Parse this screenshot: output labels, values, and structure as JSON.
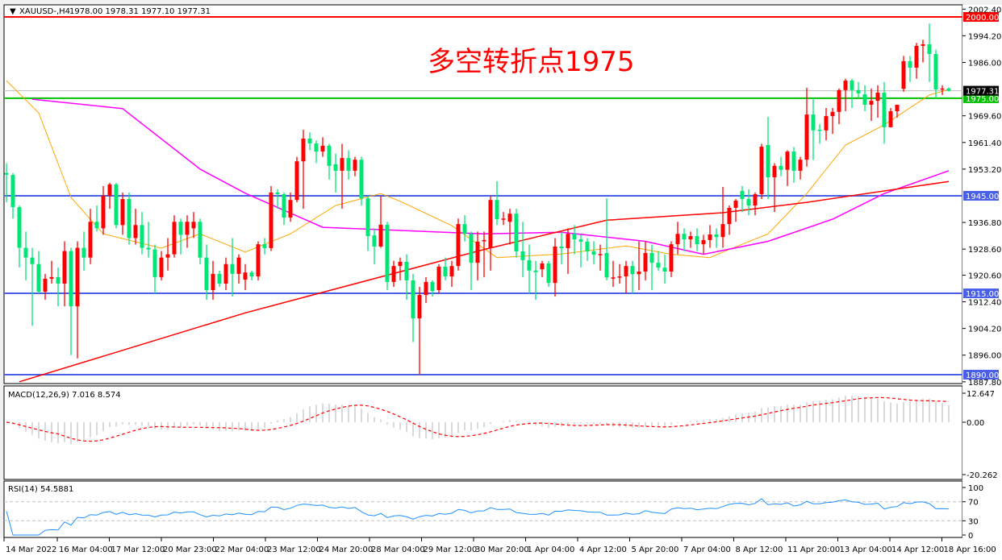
{
  "header": {
    "symbol": "XAUUSD-,H4",
    "ohlc_text": "1978.00 1978.31 1977.10 1977.31"
  },
  "annotation": "多空转折点1975",
  "colors": {
    "bull": "#ff0000",
    "bear": "#00e676",
    "ma_fast": "#ffa500",
    "ma_mid": "#ff00ff",
    "ma_slow": "#ff0000",
    "support": "#4a5fe8",
    "pivot": "#00c000",
    "resistance": "#ff0000",
    "macd_hist": "#c0c0c0",
    "macd_signal": "#ff0000",
    "rsi": "#1e90ff"
  },
  "chart_data": [
    {
      "type": "candlestick",
      "symbol": "XAUUSD-",
      "timeframe": "H4",
      "ylim": [
        1887.8,
        2002.4
      ],
      "y_ticks": [
        "2002.40",
        "1994.20",
        "1986.00",
        "1969.60",
        "1961.40",
        "1953.20",
        "1936.80",
        "1928.60",
        "1920.60",
        "1912.40",
        "1904.20",
        "1896.00",
        "1887.80"
      ],
      "x_ticks": [
        "14 Mar 2022",
        "16 Mar 04:00",
        "17 Mar 12:00",
        "20 Mar 23:00",
        "22 Mar 04:00",
        "23 Mar 12:00",
        "24 Mar 20:00",
        "28 Mar 04:00",
        "29 Mar 12:00",
        "30 Mar 20:00",
        "1 Apr 04:00",
        "4 Apr 12:00",
        "5 Apr 20:00",
        "7 Apr 04:00",
        "8 Apr 12:00",
        "11 Apr 20:00",
        "13 Apr 04:00",
        "14 Apr 12:00",
        "18 Apr 16:00"
      ],
      "candles_ohlc": [
        [
          1952,
          1955,
          1943,
          1951.5
        ],
        [
          1951.4,
          1952,
          1938,
          1941.5
        ],
        [
          1941.5,
          1942,
          1923,
          1929
        ],
        [
          1929,
          1934,
          1919,
          1926
        ],
        [
          1926,
          1929,
          1905,
          1924
        ],
        [
          1924,
          1928,
          1915,
          1915.5
        ],
        [
          1915.5,
          1921,
          1913,
          1919.5
        ],
        [
          1919.5,
          1925,
          1918,
          1920
        ],
        [
          1920,
          1923,
          1911,
          1918
        ],
        [
          1918,
          1931,
          1911,
          1928
        ],
        [
          1928,
          1929,
          1896,
          1911
        ],
        [
          1911,
          1931,
          1895,
          1929
        ],
        [
          1929,
          1934,
          1922,
          1926
        ],
        [
          1926,
          1941,
          1924,
          1937
        ],
        [
          1937,
          1942,
          1934,
          1935
        ],
        [
          1935,
          1948,
          1933,
          1945
        ],
        [
          1945,
          1949,
          1941,
          1948.5
        ],
        [
          1948.5,
          1949,
          1935,
          1936
        ],
        [
          1936,
          1946,
          1933,
          1944
        ],
        [
          1944,
          1946,
          1930,
          1932
        ],
        [
          1932,
          1941,
          1930,
          1936
        ],
        [
          1936,
          1940,
          1927,
          1929
        ],
        [
          1929,
          1937,
          1926,
          1928.5
        ],
        [
          1928.5,
          1930,
          1915,
          1920
        ],
        [
          1920,
          1928,
          1919,
          1926
        ],
        [
          1926,
          1932,
          1922,
          1927
        ],
        [
          1927,
          1939,
          1926,
          1937
        ],
        [
          1937,
          1938,
          1927,
          1933
        ],
        [
          1933,
          1939,
          1929,
          1937
        ],
        [
          1935,
          1940,
          1932,
          1937
        ],
        [
          1937,
          1938,
          1924,
          1926
        ],
        [
          1926,
          1930,
          1913,
          1916
        ],
        [
          1916,
          1925,
          1913,
          1921
        ],
        [
          1921,
          1922,
          1917,
          1918
        ],
        [
          1918,
          1926,
          1916,
          1924
        ],
        [
          1924,
          1932,
          1914,
          1921
        ],
        [
          1921,
          1927,
          1918,
          1926
        ],
        [
          1919.2,
          1924,
          1916,
          1921.4
        ],
        [
          1921.4,
          1922,
          1919,
          1920.2
        ],
        [
          1920.2,
          1931,
          1919,
          1930.1
        ],
        [
          1930.1,
          1932,
          1927,
          1928.9
        ],
        [
          1928.9,
          1948,
          1928,
          1946
        ],
        [
          1946,
          1947,
          1941,
          1945.5
        ],
        [
          1945.5,
          1946,
          1936,
          1938.3
        ],
        [
          1938.3,
          1946,
          1937,
          1943.7
        ],
        [
          1943.7,
          1957,
          1943,
          1955.6
        ],
        [
          1955.6,
          1965.3,
          1941,
          1962.6
        ],
        [
          1962.6,
          1964.5,
          1959,
          1961.1
        ],
        [
          1961.1,
          1962,
          1955,
          1958.6
        ],
        [
          1958.6,
          1963,
          1957,
          1960.4
        ],
        [
          1960.4,
          1961,
          1950,
          1954.2
        ],
        [
          1954.7,
          1958,
          1946,
          1952.7
        ],
        [
          1952.7,
          1961,
          1941,
          1956.6
        ],
        [
          1956.6,
          1959,
          1950,
          1952.7
        ],
        [
          1952.7,
          1957,
          1951,
          1956.1
        ],
        [
          1956.1,
          1957,
          1942,
          1944.2
        ],
        [
          1944.2,
          1945,
          1928,
          1932.6
        ],
        [
          1932.8,
          1935,
          1924,
          1929.4
        ],
        [
          1929.4,
          1945,
          1929,
          1936.1
        ],
        [
          1936.1,
          1937,
          1916,
          1918.5
        ],
        [
          1918.5,
          1925,
          1917,
          1923.4
        ],
        [
          1923.4,
          1926,
          1919,
          1924.7
        ],
        [
          1924.7,
          1927,
          1913,
          1919
        ],
        [
          1919,
          1921,
          1900,
          1907.3
        ],
        [
          1907.3,
          1917,
          1890,
          1914.5
        ],
        [
          1914.5,
          1920,
          1912,
          1918.5
        ],
        [
          1918.5,
          1919,
          1914,
          1915.7
        ],
        [
          1916,
          1924,
          1915,
          1923.2
        ],
        [
          1923.2,
          1926,
          1919,
          1920.2
        ],
        [
          1920.2,
          1925,
          1917,
          1923.4
        ],
        [
          1923.4,
          1938,
          1922,
          1936.3
        ],
        [
          1936.3,
          1939,
          1931,
          1933.3
        ],
        [
          1933.3,
          1934,
          1916,
          1924.4
        ],
        [
          1924.4,
          1934,
          1919,
          1930.9
        ],
        [
          1931,
          1934,
          1920,
          1931.4
        ],
        [
          1929,
          1945,
          1922,
          1943.7
        ],
        [
          1943.7,
          1949.5,
          1936,
          1937.8
        ],
        [
          1937.8,
          1940,
          1936,
          1938
        ],
        [
          1937,
          1941,
          1930,
          1939.5
        ],
        [
          1939.5,
          1941,
          1926,
          1927.9
        ],
        [
          1927.9,
          1937,
          1920,
          1925.2
        ],
        [
          1925.2,
          1930,
          1915,
          1922
        ],
        [
          1922,
          1925,
          1913,
          1921.5
        ],
        [
          1922.4,
          1925,
          1920,
          1924.2
        ],
        [
          1924.2,
          1925,
          1917,
          1918.2
        ],
        [
          1918.2,
          1932,
          1914,
          1929.4
        ],
        [
          1929.4,
          1934,
          1924,
          1928.9
        ],
        [
          1928.9,
          1935,
          1921,
          1933.3
        ],
        [
          1933.3,
          1936,
          1927,
          1931.6
        ],
        [
          1931.6,
          1933,
          1923,
          1930.9
        ],
        [
          1930.9,
          1932,
          1925,
          1927.9
        ],
        [
          1927.9,
          1931,
          1924,
          1926.9
        ],
        [
          1926.9,
          1930,
          1922,
          1927.1
        ],
        [
          1927.4,
          1944.2,
          1919,
          1919.9
        ],
        [
          1919.9,
          1925,
          1917,
          1919.9
        ],
        [
          1919.9,
          1924,
          1918,
          1920.2
        ],
        [
          1920.2,
          1925,
          1915,
          1923.4
        ],
        [
          1923.4,
          1925,
          1915,
          1920.9
        ],
        [
          1920.9,
          1931,
          1916,
          1921.7
        ],
        [
          1921.7,
          1931,
          1919,
          1927.4
        ],
        [
          1927.4,
          1930,
          1916,
          1924.4
        ],
        [
          1924.4,
          1928,
          1922,
          1922.9
        ],
        [
          1922.9,
          1927,
          1918,
          1921.7
        ],
        [
          1921.7,
          1931,
          1920,
          1930.1
        ],
        [
          1930.1,
          1937,
          1927,
          1933.3
        ],
        [
          1933.3,
          1935,
          1928,
          1931.6
        ],
        [
          1931.6,
          1934,
          1929,
          1932.6
        ],
        [
          1932.6,
          1935,
          1928,
          1930.1
        ],
        [
          1930.1,
          1933,
          1927,
          1931.4
        ],
        [
          1931.4,
          1936,
          1929,
          1933.1
        ],
        [
          1933.1,
          1935,
          1929,
          1932.3
        ],
        [
          1932.3,
          1947.7,
          1929,
          1936.3
        ],
        [
          1936.3,
          1942,
          1933,
          1941.3
        ],
        [
          1941.3,
          1944,
          1937,
          1943.5
        ],
        [
          1946.5,
          1948,
          1940,
          1944
        ],
        [
          1944,
          1947,
          1939,
          1942
        ],
        [
          1942,
          1946,
          1939,
          1945.5
        ],
        [
          1945.5,
          1961,
          1944,
          1960.1
        ],
        [
          1960.6,
          1969.3,
          1944,
          1950.7
        ],
        [
          1950.7,
          1955,
          1940,
          1954.2
        ],
        [
          1954.2,
          1957,
          1951,
          1953
        ],
        [
          1953,
          1959,
          1948,
          1958.6
        ],
        [
          1958.6,
          1960,
          1949,
          1952.7
        ],
        [
          1952.7,
          1957,
          1950,
          1956.1
        ],
        [
          1956.1,
          1978.2,
          1954,
          1970
        ],
        [
          1970,
          1975,
          1956,
          1965.1
        ],
        [
          1965.3,
          1967,
          1961,
          1965.1
        ],
        [
          1965.1,
          1972,
          1962,
          1969.5
        ],
        [
          1969.5,
          1972,
          1964,
          1970.8
        ],
        [
          1970.8,
          1978,
          1967,
          1977.5
        ],
        [
          1977.5,
          1981,
          1971,
          1980.4
        ],
        [
          1980.4,
          1981,
          1972,
          1977.5
        ],
        [
          1977.5,
          1980,
          1975,
          1976.5
        ],
        [
          1976.2,
          1979,
          1971,
          1973
        ],
        [
          1973,
          1978,
          1968,
          1974.2
        ],
        [
          1974.2,
          1979,
          1969,
          1976.7
        ],
        [
          1976.7,
          1980,
          1961,
          1966.1
        ],
        [
          1966.1,
          1972,
          1966,
          1971
        ],
        [
          1971,
          1973,
          1969,
          1973
        ],
        [
          1977.9,
          1988,
          1977,
          1986.4
        ],
        [
          1986.4,
          1988,
          1980,
          1984.4
        ],
        [
          1984.4,
          1992,
          1981,
          1991.1
        ],
        [
          1991.1,
          1993,
          1986,
          1991.6
        ],
        [
          1991.6,
          1998,
          1980,
          1988.6
        ],
        [
          1988.6,
          1990,
          1975,
          1977.7
        ],
        [
          1977.7,
          1979,
          1976,
          1978
        ],
        [
          1978,
          1978.31,
          1977.1,
          1977.31
        ]
      ],
      "moving_averages": [
        {
          "role": "fast",
          "points": [
            [
              0,
              1980.4
            ],
            [
              5,
              1970.5
            ],
            [
              10,
              1944.5
            ],
            [
              15,
              1933.3
            ],
            [
              24,
              1928.9
            ],
            [
              30,
              1933.3
            ],
            [
              37,
              1927.7
            ],
            [
              44,
              1933.3
            ],
            [
              51,
              1942
            ],
            [
              58,
              1945.7
            ],
            [
              61,
              1943.3
            ],
            [
              69,
              1935.8
            ],
            [
              76,
              1926
            ],
            [
              86,
              1927.1
            ],
            [
              96,
              1929.6
            ],
            [
              103,
              1927
            ],
            [
              109,
              1926
            ],
            [
              111,
              1927.7
            ],
            [
              118,
              1933.3
            ],
            [
              124,
              1945.7
            ],
            [
              130,
              1960.6
            ],
            [
              136,
              1966.8
            ],
            [
              143,
              1976
            ],
            [
              146,
              1977.7
            ]
          ]
        },
        {
          "role": "mid",
          "points": [
            [
              4,
              1974.7
            ],
            [
              18,
              1971.8
            ],
            [
              30,
              1953.2
            ],
            [
              37,
              1945.8
            ],
            [
              49,
              1935.3
            ],
            [
              74,
              1933.3
            ],
            [
              86,
              1933.8
            ],
            [
              99,
              1931
            ],
            [
              108,
              1927
            ],
            [
              118,
              1931
            ],
            [
              128,
              1937.8
            ],
            [
              136,
              1945.7
            ],
            [
              146,
              1952.7
            ]
          ]
        },
        {
          "role": "slow",
          "points": [
            [
              2,
              1887.8
            ],
            [
              37,
              1909
            ],
            [
              74,
              1928.5
            ],
            [
              93,
              1937.5
            ],
            [
              111,
              1939.8
            ],
            [
              124,
              1943
            ],
            [
              146,
              1949.4
            ]
          ]
        }
      ],
      "horizontal_levels": [
        {
          "value": 2000.0,
          "label": "2000.00",
          "role": "resistance"
        },
        {
          "value": 1975.0,
          "label": "1975.00",
          "role": "pivot"
        },
        {
          "value": 1945.0,
          "label": "1945.00",
          "role": "support"
        },
        {
          "value": 1915.0,
          "label": "1915.00",
          "role": "support"
        },
        {
          "value": 1890.0,
          "label": "1890.00",
          "role": "support"
        }
      ],
      "current_price": {
        "value": 1977.31,
        "label": "1977.31"
      }
    },
    {
      "type": "macd",
      "title": "MACD(12,26,9) 7.016 8.574",
      "ylim": [
        -20.262,
        12.647
      ],
      "y_ticks": [
        "12.647",
        "0.00",
        "-20.262"
      ]
    },
    {
      "type": "rsi",
      "title": "RSI(14) 54.5881",
      "ylim": [
        0,
        100
      ],
      "y_ticks": [
        "100",
        "70",
        "30",
        "0"
      ],
      "levels": [
        70,
        30
      ]
    }
  ]
}
